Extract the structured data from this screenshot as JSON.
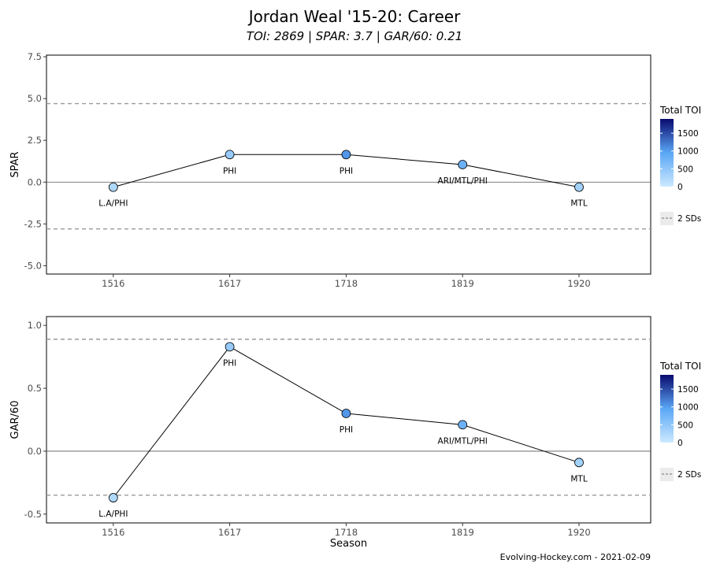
{
  "title": "Jordan Weal '15-20: Career",
  "subtitle": "TOI: 2869 | SPAR: 3.7 | GAR/60: 0.21",
  "caption": "Evolving-Hockey.com - 2021-02-09",
  "colors": {
    "toi_low": "#cce9ff",
    "toi_mid": "#5aa7f5",
    "toi_high": "#0a0a6e",
    "line": "#000000",
    "sd_line": "#999999",
    "zero_line": "#555555"
  },
  "legend": {
    "title": "Total TOI",
    "ticks": [
      "0",
      "500",
      "1000",
      "1500"
    ],
    "sd_label": "2 SDs"
  },
  "chart_data": [
    {
      "type": "line",
      "ylabel": "SPAR",
      "xlabel": "",
      "categories": [
        "1516",
        "1617",
        "1718",
        "1819",
        "1920"
      ],
      "values": [
        -0.3,
        1.65,
        1.65,
        1.05,
        -0.3
      ],
      "point_labels": [
        "L.A/PHI",
        "PHI",
        "PHI",
        "ARI/MTL/PHI",
        "MTL"
      ],
      "toi": [
        250,
        450,
        1050,
        800,
        350
      ],
      "yticks": [
        "-5.0",
        "-2.5",
        "0.0",
        "2.5",
        "5.0",
        "7.5"
      ],
      "ytick_values": [
        -5,
        -2.5,
        0,
        2.5,
        5,
        7.5
      ],
      "ylim": [
        -5.5,
        7.6
      ],
      "sd_lines": [
        4.7,
        -2.8
      ],
      "legend_position": "right"
    },
    {
      "type": "line",
      "ylabel": "GAR/60",
      "xlabel": "Season",
      "categories": [
        "1516",
        "1617",
        "1718",
        "1819",
        "1920"
      ],
      "values": [
        -0.37,
        0.83,
        0.3,
        0.21,
        -0.09
      ],
      "point_labels": [
        "L.A/PHI",
        "PHI",
        "PHI",
        "ARI/MTL/PHI",
        "MTL"
      ],
      "toi": [
        250,
        450,
        1050,
        800,
        350
      ],
      "yticks": [
        "-0.5",
        "0.0",
        "0.5",
        "1.0"
      ],
      "ytick_values": [
        -0.5,
        0,
        0.5,
        1.0
      ],
      "ylim": [
        -0.57,
        1.07
      ],
      "sd_lines": [
        0.89,
        -0.35
      ],
      "legend_position": "right"
    }
  ]
}
